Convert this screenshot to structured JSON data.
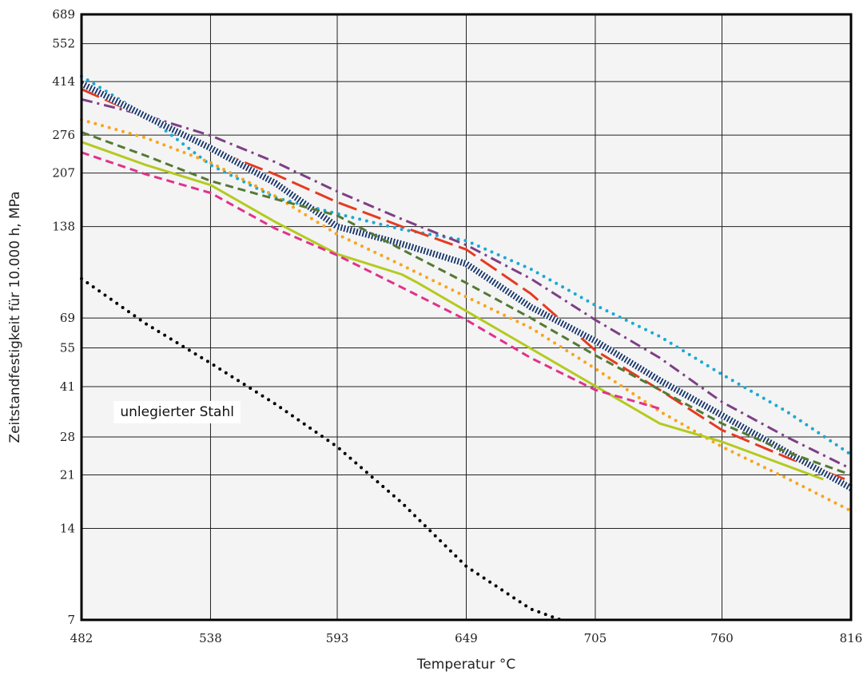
{
  "chart_data": {
    "type": "line",
    "title": "",
    "xlabel": "Temperatur °C",
    "ylabel": "Zeitstandfestigkeit für 10.000 h, MPa",
    "x_scale": "linear",
    "y_scale": "log",
    "xlim": [
      482,
      816
    ],
    "ylim": [
      7,
      689
    ],
    "x_ticks": [
      482,
      538,
      593,
      649,
      705,
      760,
      816
    ],
    "y_ticks": [
      7,
      14,
      21,
      28,
      41,
      55,
      69,
      138,
      207,
      276,
      414,
      552,
      689
    ],
    "x_gridlines": [
      538,
      593,
      649,
      705,
      760
    ],
    "y_gridlines": [
      14,
      21,
      28,
      41,
      55,
      69,
      138,
      207,
      276,
      414,
      552
    ],
    "grid": true,
    "legend": "none",
    "annotations": [
      {
        "text": "unlegierter Stahl",
        "x": 496,
        "y": 34
      }
    ],
    "series": [
      {
        "color": "#000000",
        "style": "dotted",
        "x": [
          482,
          510,
          538,
          566,
          593,
          621,
          649,
          677,
          690
        ],
        "y": [
          93,
          66,
          49,
          36,
          26,
          17,
          10.5,
          7.6,
          7
        ]
      },
      {
        "color": "#1BA9D4",
        "style": "dotted",
        "x": [
          482,
          510,
          538,
          566,
          593,
          621,
          649,
          677,
          705,
          733,
          760,
          788,
          816
        ],
        "y": [
          431,
          320,
          220,
          172,
          152,
          135,
          124,
          100,
          76,
          60,
          45,
          34,
          24.5
        ]
      },
      {
        "color": "#7E3F86",
        "style": "dashdot",
        "x": [
          482,
          510,
          538,
          566,
          593,
          621,
          649,
          677,
          705,
          733,
          760,
          788,
          816
        ],
        "y": [
          362,
          320,
          275,
          225,
          180,
          146,
          120,
          93,
          68,
          51,
          36.5,
          28,
          22
        ]
      },
      {
        "color": "#E63A22",
        "style": "longdash",
        "x": [
          482,
          510,
          538,
          566,
          593,
          621,
          649,
          677,
          705,
          733,
          760,
          788,
          816
        ],
        "y": [
          391,
          315,
          248,
          205,
          166,
          138,
          116,
          83,
          54,
          40,
          29.5,
          24,
          20
        ]
      },
      {
        "color": "#1F3B6E",
        "style": "hatched",
        "x": [
          482,
          510,
          538,
          566,
          593,
          621,
          649,
          677,
          705,
          733,
          760,
          788,
          816
        ],
        "y": [
          408,
          318,
          250,
          192,
          138,
          121,
          104,
          75,
          58,
          43,
          33,
          25,
          19
        ]
      },
      {
        "color": "#F7A51C",
        "style": "dotted",
        "x": [
          482,
          510,
          538,
          566,
          593,
          621,
          649,
          677,
          705,
          733,
          760,
          788,
          816
        ],
        "y": [
          310,
          270,
          224,
          174,
          130,
          103,
          81,
          64,
          47,
          34,
          26,
          20.5,
          16
        ]
      },
      {
        "color": "#547A33",
        "style": "dashed",
        "x": [
          482,
          510,
          538,
          566,
          593,
          621,
          649,
          677,
          705,
          733,
          760,
          788,
          816
        ],
        "y": [
          282,
          236,
          195,
          170,
          150,
          116,
          90,
          69,
          52,
          40,
          31,
          25,
          21
        ]
      },
      {
        "color": "#B4CA1F",
        "style": "solid",
        "x": [
          482,
          510,
          538,
          566,
          593,
          621,
          628,
          733,
          760,
          804
        ],
        "y": [
          262,
          220,
          189,
          143,
          112,
          96,
          90,
          31,
          27,
          20.3
        ]
      },
      {
        "color": "#E0338A",
        "style": "dashed",
        "x": [
          482,
          510,
          538,
          566,
          593,
          621,
          649,
          677,
          705,
          733
        ],
        "y": [
          242,
          205,
          178,
          136,
          111,
          87,
          68,
          51,
          40,
          34.7
        ]
      }
    ]
  }
}
